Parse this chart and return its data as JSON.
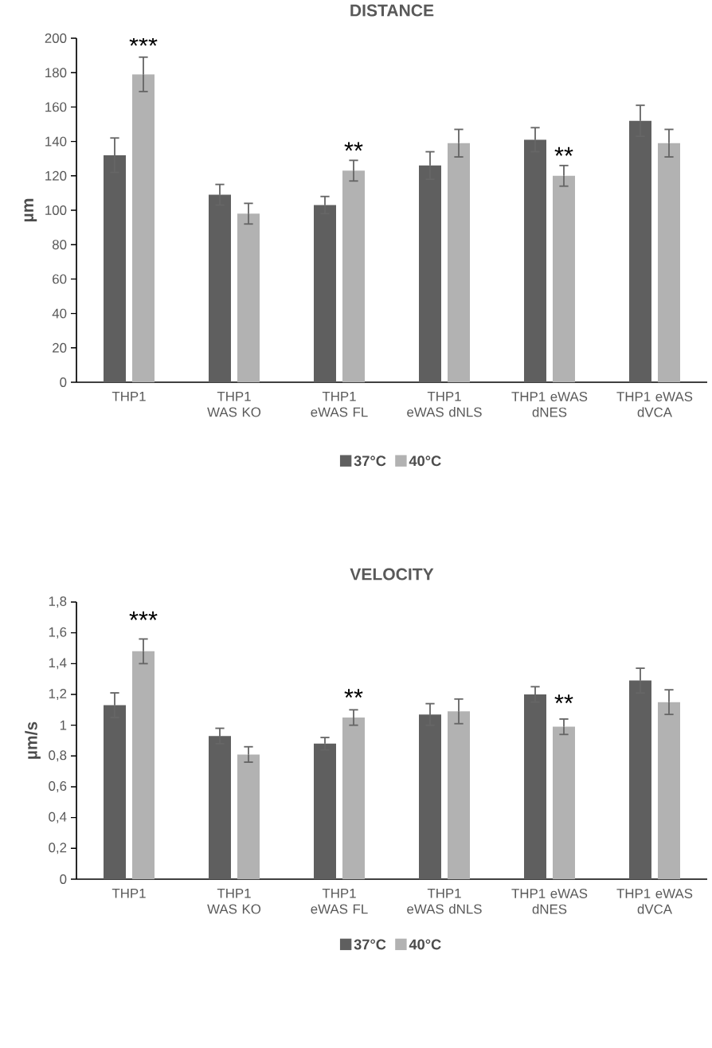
{
  "chart_data": [
    {
      "type": "bar",
      "title": "DISTANCE",
      "ylabel": "µm",
      "categories": [
        "THP1",
        "THP1 WAS KO",
        "THP1 eWAS FL",
        "THP1 eWAS dNLS",
        "THP1 eWAS dNES",
        "THP1 eWAS dVCA"
      ],
      "series": [
        {
          "name": "37°C",
          "color": "#5f5f5f",
          "values": [
            132,
            109,
            103,
            126,
            141,
            152
          ],
          "errors": [
            10,
            6,
            5,
            8,
            7,
            9
          ]
        },
        {
          "name": "40°C",
          "color": "#b2b2b2",
          "values": [
            179,
            98,
            123,
            139,
            120,
            139
          ],
          "errors": [
            10,
            6,
            6,
            8,
            6,
            8
          ]
        }
      ],
      "ylim": [
        0,
        200
      ],
      "yticks": [
        0,
        20,
        40,
        60,
        80,
        100,
        120,
        140,
        160,
        180,
        200
      ],
      "legend": "bottom",
      "annotations": [
        "***",
        "**",
        "**"
      ]
    },
    {
      "type": "bar",
      "title": "VELOCITY",
      "ylabel": "µm/s",
      "categories": [
        "THP1",
        "THP1 WAS KO",
        "THP1 eWAS FL",
        "THP1 eWAS dNLS",
        "THP1 eWAS dNES",
        "THP1 eWAS dVCA"
      ],
      "series": [
        {
          "name": "37°C",
          "color": "#5f5f5f",
          "values": [
            1.13,
            0.93,
            0.88,
            1.07,
            1.2,
            1.29
          ],
          "errors": [
            0.08,
            0.05,
            0.04,
            0.07,
            0.05,
            0.08
          ]
        },
        {
          "name": "40°C",
          "color": "#b2b2b2",
          "values": [
            1.48,
            0.81,
            1.05,
            1.09,
            0.99,
            1.15
          ],
          "errors": [
            0.08,
            0.05,
            0.05,
            0.08,
            0.05,
            0.08
          ]
        }
      ],
      "ylim": [
        0,
        1.8
      ],
      "yticks": [
        0,
        {
          "value": 0.2,
          "label": "0,2"
        },
        {
          "value": 0.4,
          "label": "0,4"
        },
        {
          "value": 0.6,
          "label": "0,6"
        },
        {
          "value": 0.8,
          "label": "0,8"
        },
        1,
        {
          "value": 1.2,
          "label": "1,2"
        },
        {
          "value": 1.4,
          "label": "1,4"
        },
        {
          "value": 1.6,
          "label": "1,6"
        },
        {
          "value": 1.8,
          "label": "1,8"
        }
      ],
      "legend": "bottom",
      "annotations": [
        "***",
        "**",
        "**"
      ]
    }
  ]
}
